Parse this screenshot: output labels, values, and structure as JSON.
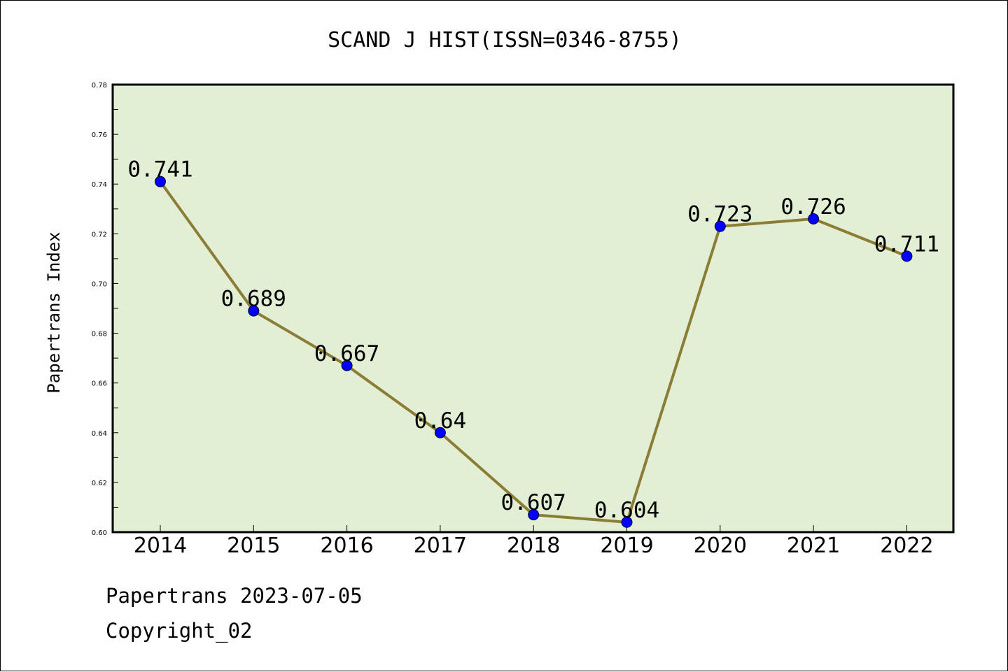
{
  "chart_data": {
    "type": "line",
    "title": "SCAND J HIST(ISSN=0346-8755)",
    "xlabel": "",
    "ylabel": "Papertrans Index",
    "categories": [
      "2014",
      "2015",
      "2016",
      "2017",
      "2018",
      "2019",
      "2020",
      "2021",
      "2022"
    ],
    "series": [
      {
        "values": [
          0.741,
          0.689,
          0.667,
          0.64,
          0.607,
          0.604,
          0.723,
          0.726,
          0.711
        ],
        "data_labels": [
          "0.741",
          "0.689",
          "0.667",
          "0.64",
          "0.607",
          "0.604",
          "0.723",
          "0.726",
          "0.711"
        ]
      }
    ],
    "ylim": [
      0.6,
      0.78
    ],
    "yticks": [
      "0.60",
      "0.62",
      "0.64",
      "0.66",
      "0.68",
      "0.70",
      "0.72",
      "0.74",
      "0.76",
      "0.78"
    ],
    "grid": false,
    "legend": "none"
  },
  "colors": {
    "plot_background": "#e2efd5",
    "line": "#8b7d35",
    "marker": "#0000ff",
    "axis": "#000000"
  },
  "footer": {
    "date_line": "Papertrans 2023-07-05",
    "copyright_line": "Copyright_02"
  }
}
